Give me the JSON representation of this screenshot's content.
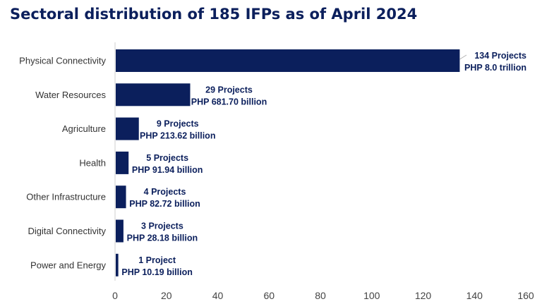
{
  "colors": {
    "bar": "#0b1f5c",
    "title": "#0b1f5c",
    "axis": "#cfcfcf"
  },
  "chart_data": {
    "type": "bar",
    "orientation": "horizontal",
    "title": "Sectoral distribution of 185 IFPs as of April 2024",
    "xlabel": "",
    "ylabel": "",
    "xlim": [
      0,
      160
    ],
    "xticks": [
      0,
      20,
      40,
      60,
      80,
      100,
      120,
      140,
      160
    ],
    "grid": false,
    "legend": "none",
    "categories": [
      "Physical Connectivity",
      "Water Resources",
      "Agriculture",
      "Health",
      "Other Infrastructure",
      "Digital Connectivity",
      "Power and Energy"
    ],
    "values": [
      134,
      29,
      9,
      5,
      4,
      3,
      1
    ],
    "data_labels": [
      [
        "134 Projects",
        "PHP 8.0 trillion"
      ],
      [
        "29 Projects",
        "PHP 681.70 billion"
      ],
      [
        "9 Projects",
        "PHP 213.62 billion"
      ],
      [
        "5 Projects",
        "PHP 91.94 billion"
      ],
      [
        "4 Projects",
        "PHP 82.72 billion"
      ],
      [
        "3 Projects",
        "PHP 28.18 billion"
      ],
      [
        "1 Project",
        "PHP 10.19 billion"
      ]
    ]
  }
}
